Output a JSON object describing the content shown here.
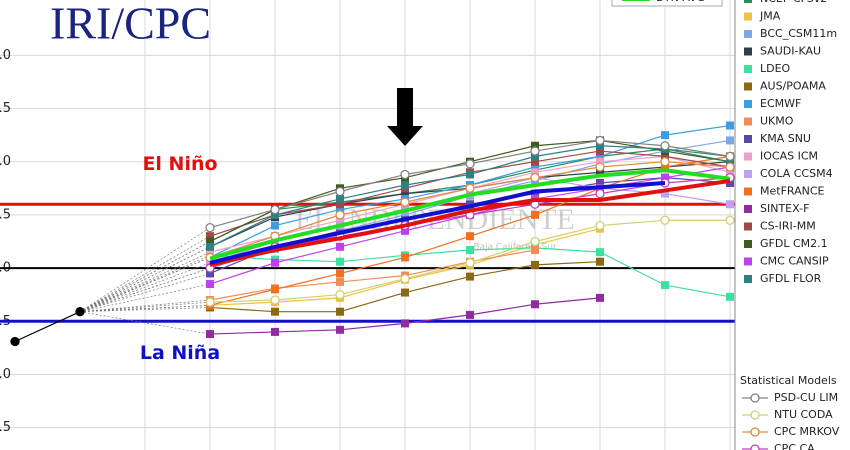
{
  "chart_data": {
    "type": "line",
    "title": "IRI/CPC",
    "watermark": {
      "title": "EL INDEPENDIENTE",
      "subtitle": "Baja California Sur"
    },
    "categories": [
      null,
      null,
      null,
      null,
      null,
      null,
      null,
      null,
      null,
      null,
      null,
      null
    ],
    "ylim": [
      -1.71,
      2.52
    ],
    "yticks": [
      {
        "value": -1.5,
        "label": "-1.5"
      },
      {
        "value": -1,
        "label": "-1.0"
      },
      {
        "value": -0.5,
        "label": "-0.5"
      },
      {
        "value": 0,
        "label": "0.0"
      },
      {
        "value": 0.5,
        "label": "0.5"
      },
      {
        "value": 1,
        "label": "1.0"
      },
      {
        "value": 1.5,
        "label": "1.5"
      },
      {
        "value": 2,
        "label": "2.0"
      }
    ],
    "grid": true,
    "thresholds": [
      {
        "value": 0.6,
        "label": "El Niño",
        "color": "#e01010"
      },
      {
        "value": -0.5,
        "label": "La Niña",
        "color": "#1010c8"
      },
      {
        "value": 0,
        "color": "#000000"
      }
    ],
    "legend_stat_title": "Statistical Models",
    "observed": {
      "color": "#000000",
      "values": [
        -0.69,
        -0.41,
        null,
        null,
        null,
        null,
        null,
        null,
        null,
        null,
        null,
        null
      ]
    },
    "series": [
      {
        "name": "NCEP CFSv2",
        "color": "#2e8b57",
        "marker": "square",
        "values": [
          null,
          null,
          null,
          0.25,
          0.55,
          0.62,
          0.7,
          0.78,
          0.92,
          1.05,
          1.12,
          1.05
        ]
      },
      {
        "name": "JMA",
        "color": "#f0c040",
        "marker": "square",
        "values": [
          null,
          null,
          null,
          -0.35,
          -0.32,
          -0.28,
          -0.11,
          0.03,
          0.22,
          0.37,
          null,
          null
        ]
      },
      {
        "name": "BCC_CSM11m",
        "color": "#7fa7e8",
        "marker": "square",
        "values": [
          null,
          null,
          null,
          0.0,
          0.18,
          0.35,
          0.5,
          0.68,
          0.82,
          0.98,
          1.1,
          1.2
        ]
      },
      {
        "name": "SAUDI-KAU",
        "color": "#2f3f4f",
        "marker": "square",
        "values": [
          null,
          null,
          null,
          0.2,
          0.48,
          0.6,
          0.7,
          0.75,
          0.85,
          0.9,
          0.95,
          1.0
        ]
      },
      {
        "name": "LDEO",
        "color": "#3ee0a0",
        "marker": "square",
        "values": [
          null,
          null,
          null,
          0.12,
          0.08,
          0.06,
          0.12,
          0.17,
          0.19,
          0.15,
          -0.16,
          -0.27
        ]
      },
      {
        "name": "AUS/POAMA",
        "color": "#8b6914",
        "marker": "square",
        "values": [
          null,
          null,
          null,
          -0.37,
          -0.41,
          -0.41,
          -0.23,
          -0.08,
          0.03,
          0.06,
          null,
          null
        ]
      },
      {
        "name": "ECMWF",
        "color": "#3a9ee0",
        "marker": "square",
        "values": [
          null,
          null,
          null,
          0.1,
          0.4,
          0.55,
          0.65,
          0.78,
          0.95,
          1.05,
          1.25,
          1.34
        ]
      },
      {
        "name": "UKMO",
        "color": "#f08c5a",
        "marker": "square",
        "values": [
          null,
          null,
          null,
          -0.3,
          -0.19,
          -0.13,
          -0.07,
          0.06,
          0.17,
          null,
          null,
          null
        ]
      },
      {
        "name": "KMA SNU",
        "color": "#5a4aa8",
        "marker": "square",
        "values": [
          null,
          null,
          null,
          -0.05,
          0.2,
          0.35,
          0.45,
          0.6,
          0.7,
          0.8,
          0.85,
          0.8
        ]
      },
      {
        "name": "IOCAS ICM",
        "color": "#f0a0c8",
        "marker": "square",
        "values": [
          null,
          null,
          null,
          0.15,
          0.3,
          0.45,
          0.6,
          0.75,
          0.9,
          1.0,
          1.05,
          0.9
        ]
      },
      {
        "name": "COLA CCSM4",
        "color": "#c0a0f0",
        "marker": "square",
        "values": [
          null,
          null,
          null,
          0.05,
          0.25,
          0.4,
          0.55,
          0.7,
          0.85,
          0.75,
          0.7,
          0.6
        ]
      },
      {
        "name": "MetFRANCE",
        "color": "#f07020",
        "marker": "square",
        "values": [
          null,
          null,
          null,
          -0.35,
          -0.2,
          -0.05,
          0.1,
          0.3,
          0.5,
          0.75,
          0.95,
          1.05
        ]
      },
      {
        "name": "SINTEX-F",
        "color": "#902ca0",
        "marker": "square",
        "values": [
          null,
          null,
          null,
          -0.62,
          -0.6,
          -0.58,
          -0.52,
          -0.44,
          -0.34,
          -0.28,
          null,
          null
        ]
      },
      {
        "name": "CS-IRI-MM",
        "color": "#a04848",
        "marker": "square",
        "values": [
          null,
          null,
          null,
          0.3,
          0.5,
          0.6,
          0.75,
          0.9,
          1.0,
          1.1,
          1.05,
          0.95
        ]
      },
      {
        "name": "GFDL CM2.1",
        "color": "#3d5c1e",
        "marker": "square",
        "values": [
          null,
          null,
          null,
          0.25,
          0.55,
          0.75,
          0.85,
          1.0,
          1.15,
          1.2,
          1.1,
          1.0
        ]
      },
      {
        "name": "CMC CANSIP",
        "color": "#c040f0",
        "marker": "square",
        "values": [
          null,
          null,
          null,
          -0.15,
          0.05,
          0.2,
          0.35,
          0.5,
          0.65,
          0.75,
          0.85,
          0.95
        ]
      },
      {
        "name": "GFDL FLOR",
        "color": "#2f8080",
        "marker": "square",
        "values": [
          null,
          null,
          null,
          0.2,
          0.5,
          0.65,
          0.78,
          0.88,
          1.05,
          1.15,
          1.12,
          1.0
        ]
      },
      {
        "name": "PSD-CU LIM",
        "color": "#808080",
        "marker": "circle",
        "values": [
          null,
          null,
          null,
          0.38,
          0.55,
          0.72,
          0.88,
          0.98,
          1.1,
          1.2,
          1.15,
          1.05
        ]
      },
      {
        "name": "NTU CODA",
        "color": "#d0d070",
        "marker": "circle",
        "values": [
          null,
          null,
          null,
          -0.32,
          -0.3,
          -0.25,
          -0.1,
          0.05,
          0.25,
          0.4,
          0.45,
          0.45
        ]
      },
      {
        "name": "CPC MRKOV",
        "color": "#e08a3c",
        "marker": "circle",
        "values": [
          null,
          null,
          null,
          0.1,
          0.3,
          0.5,
          0.62,
          0.75,
          0.85,
          0.95,
          1.0,
          0.95
        ]
      },
      {
        "name": "CPC CA",
        "color": "#c040c0",
        "marker": "circle",
        "values": [
          null,
          null,
          null,
          0.0,
          0.2,
          0.3,
          0.4,
          0.5,
          0.6,
          0.7,
          0.8,
          0.85
        ]
      },
      {
        "name": "DYN AVG",
        "color": "#22dd22",
        "marker": "average",
        "values": [
          null,
          null,
          null,
          0.09,
          0.26,
          0.4,
          0.54,
          0.69,
          0.78,
          0.87,
          0.92,
          0.84
        ]
      },
      {
        "color": "#e01010",
        "marker": "average",
        "values": [
          null,
          null,
          null,
          0.03,
          0.17,
          0.28,
          0.4,
          0.54,
          0.64,
          0.64,
          0.73,
          0.82
        ]
      },
      {
        "color": "#1010d0",
        "marker": "average",
        "values": [
          null,
          null,
          null,
          0.05,
          0.2,
          0.33,
          0.46,
          0.58,
          0.72,
          0.76,
          0.8,
          null
        ]
      }
    ]
  }
}
